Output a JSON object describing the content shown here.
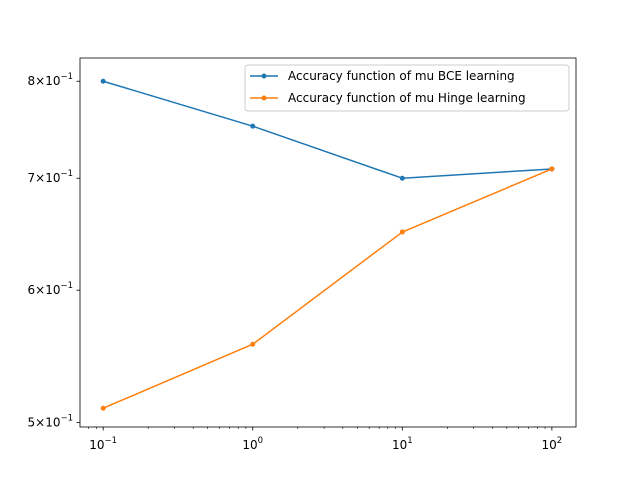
{
  "chart_data": {
    "type": "line",
    "title": "",
    "xlabel": "",
    "ylabel": "",
    "xscale": "log",
    "yscale": "log",
    "x": [
      0.1,
      1,
      10,
      100
    ],
    "xlim": [
      0.07,
      145
    ],
    "ylim": [
      0.497,
      0.826
    ],
    "xticks": [
      {
        "value": 0.1,
        "base": "10",
        "exp": "−1"
      },
      {
        "value": 1,
        "base": "10",
        "exp": "0"
      },
      {
        "value": 10,
        "base": "10",
        "exp": "1"
      },
      {
        "value": 100,
        "base": "10",
        "exp": "2"
      }
    ],
    "yticks": [
      {
        "value": 0.5,
        "mant": "5",
        "times": "×",
        "base": "10",
        "exp": "−1"
      },
      {
        "value": 0.6,
        "mant": "6",
        "times": "×",
        "base": "10",
        "exp": "−1"
      },
      {
        "value": 0.7,
        "mant": "7",
        "times": "×",
        "base": "10",
        "exp": "−1"
      },
      {
        "value": 0.8,
        "mant": "8",
        "times": "×",
        "base": "10",
        "exp": "−1"
      }
    ],
    "series": [
      {
        "name": "Accuracy function of mu BCE learning",
        "color": "#1f77b4",
        "values": [
          0.8,
          0.752,
          0.7,
          0.709
        ]
      },
      {
        "name": "Accuracy function of mu Hinge learning",
        "color": "#ff7f0e",
        "values": [
          0.51,
          0.557,
          0.65,
          0.709
        ]
      }
    ],
    "legend_position": "top-right",
    "grid": false
  }
}
